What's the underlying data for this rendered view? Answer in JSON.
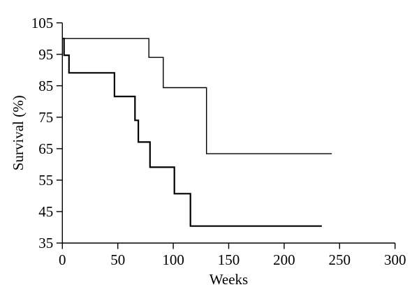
{
  "figure": {
    "background_color": "#ffffff",
    "axis_color": "#000000",
    "text_color": "#000000"
  },
  "chart_data": {
    "type": "line",
    "subtype": "kaplan-meier-step",
    "xlabel": "Weeks",
    "ylabel": "Survival (%)",
    "xlim": [
      0,
      300
    ],
    "ylim": [
      35,
      105
    ],
    "x_ticks": [
      0,
      50,
      100,
      150,
      200,
      250,
      300
    ],
    "y_ticks": [
      35,
      45,
      55,
      65,
      75,
      85,
      95,
      105
    ],
    "grid": false,
    "legend": false,
    "series": [
      {
        "name": "upper-curve",
        "color": "#000000",
        "stroke_width": 1.4,
        "points": [
          [
            0,
            100
          ],
          [
            78,
            100
          ],
          [
            78,
            94
          ],
          [
            91,
            94
          ],
          [
            91,
            84.4
          ],
          [
            130,
            84.4
          ],
          [
            130,
            63.4
          ],
          [
            243,
            63.4
          ]
        ]
      },
      {
        "name": "lower-curve",
        "color": "#000000",
        "stroke_width": 2.2,
        "points": [
          [
            0,
            100
          ],
          [
            1.5,
            100
          ],
          [
            1.5,
            94.7
          ],
          [
            6,
            94.7
          ],
          [
            6,
            89.1
          ],
          [
            47,
            89.1
          ],
          [
            47,
            81.6
          ],
          [
            65.5,
            81.6
          ],
          [
            65.5,
            74.0
          ],
          [
            68.5,
            74.0
          ],
          [
            68.5,
            67.1
          ],
          [
            79,
            67.1
          ],
          [
            79,
            59.1
          ],
          [
            101,
            59.1
          ],
          [
            101,
            50.7
          ],
          [
            115.5,
            50.7
          ],
          [
            115.5,
            40.4
          ],
          [
            234,
            40.4
          ]
        ]
      }
    ]
  }
}
